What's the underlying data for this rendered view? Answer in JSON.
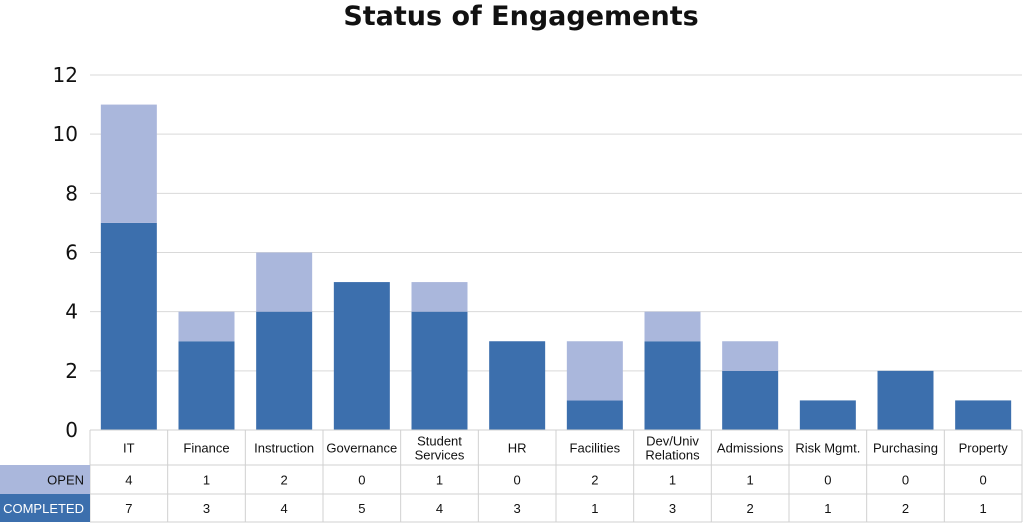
{
  "chart_data": {
    "type": "bar",
    "stacked": true,
    "title": "Status of Engagements",
    "categories": [
      [
        "IT"
      ],
      [
        "Finance"
      ],
      [
        "Instruction"
      ],
      [
        "Governance"
      ],
      [
        "Student",
        "Services"
      ],
      [
        "HR"
      ],
      [
        "Facilities"
      ],
      [
        "Dev/Univ",
        "Relations"
      ],
      [
        "Admissions"
      ],
      [
        "Risk Mgmt."
      ],
      [
        "Purchasing"
      ],
      [
        "Property"
      ]
    ],
    "series": [
      {
        "name": "COMPLETED",
        "color": "#3c6fad",
        "values": [
          7,
          3,
          4,
          5,
          4,
          3,
          1,
          3,
          2,
          1,
          2,
          1
        ]
      },
      {
        "name": "OPEN",
        "color": "#aab7dc",
        "values": [
          4,
          1,
          2,
          0,
          1,
          0,
          2,
          1,
          1,
          0,
          0,
          0
        ]
      }
    ],
    "ylim": [
      0,
      12
    ],
    "yticks": [
      0,
      2,
      4,
      6,
      8,
      10,
      12
    ],
    "grid": true,
    "legend": "data-table below chart"
  }
}
